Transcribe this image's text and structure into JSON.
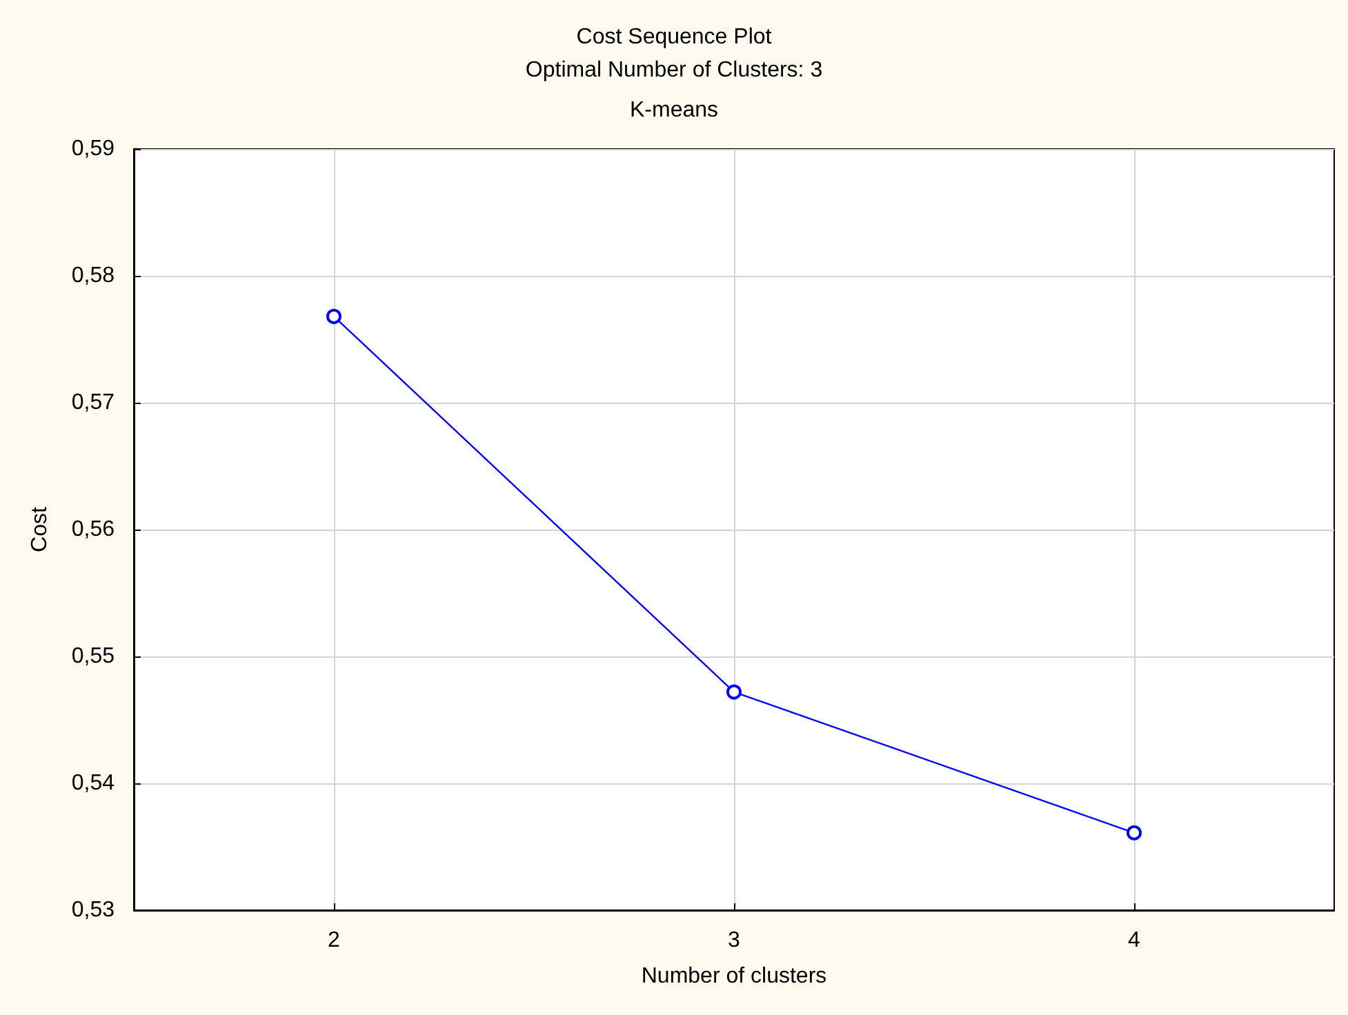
{
  "chart_data": {
    "type": "line",
    "title": "Cost Sequence Plot",
    "subtitle": "Optimal Number of Clusters: 3",
    "annotations": [
      "K-means"
    ],
    "xlabel": "Number of clusters",
    "ylabel": "Cost",
    "x": [
      2,
      3,
      4
    ],
    "series": [
      {
        "color": "#0000ff",
        "values": [
          0.5768,
          0.5472,
          0.5361
        ]
      }
    ],
    "xlim": [
      1.5,
      4.5
    ],
    "xticks": [
      2,
      3,
      4
    ],
    "ylim": [
      0.53,
      0.59
    ],
    "yticks": [
      {
        "value": 0.53,
        "label": "0,53"
      },
      {
        "value": 0.54,
        "label": "0,54"
      },
      {
        "value": 0.55,
        "label": "0,55"
      },
      {
        "value": 0.56,
        "label": "0,56"
      },
      {
        "value": 0.57,
        "label": "0,57"
      },
      {
        "value": 0.58,
        "label": "0,58"
      },
      {
        "value": 0.59,
        "label": "0,59"
      }
    ],
    "grid": true,
    "marker": "circle",
    "line_style": "solid"
  }
}
